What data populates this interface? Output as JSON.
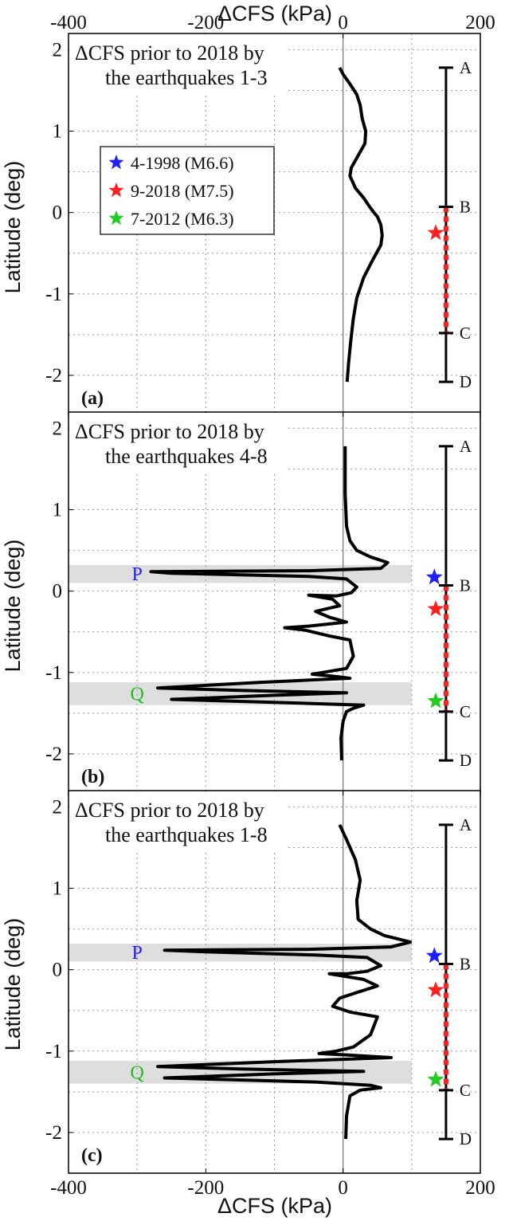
{
  "figure": {
    "top_axis_label": "ΔCFS (kPa)",
    "bottom_axis_label": "ΔCFS (kPa)",
    "y_axis_label": "Latitude (deg)"
  },
  "chart_data": [
    {
      "type": "line",
      "panel_tag": "(a)",
      "title_lines": [
        "ΔCFS prior to 2018 by",
        "the earthquakes 1-3"
      ],
      "xlabel": "ΔCFS (kPa)",
      "ylabel": "Latitude (deg)",
      "xlim": [
        -400,
        200
      ],
      "ylim": [
        -2.5,
        2.2
      ],
      "xticks": [
        -400,
        -200,
        0,
        200
      ],
      "yticks": [
        -2,
        -1,
        0,
        1,
        2
      ],
      "grid": true,
      "legend": {
        "placement": "upper-left",
        "entries": [
          {
            "label": "4-1998 (M6.6)",
            "color": "#1f1fff",
            "marker": "star"
          },
          {
            "label": "9-2018 (M7.5)",
            "color": "#ff1f1f",
            "marker": "star"
          },
          {
            "label": "7-2012 (M6.3)",
            "color": "#1fcc1f",
            "marker": "star"
          }
        ]
      },
      "series": [
        {
          "color": "#000000",
          "points": [
            [
              -5,
              1.78
            ],
            [
              0,
              1.7
            ],
            [
              10,
              1.58
            ],
            [
              20,
              1.45
            ],
            [
              25,
              1.32
            ],
            [
              28,
              1.15
            ],
            [
              33,
              1.0
            ],
            [
              32,
              0.85
            ],
            [
              22,
              0.7
            ],
            [
              12,
              0.55
            ],
            [
              10,
              0.45
            ],
            [
              18,
              0.3
            ],
            [
              30,
              0.18
            ],
            [
              38,
              0.08
            ],
            [
              45,
              0.0
            ],
            [
              50,
              -0.05
            ],
            [
              55,
              -0.15
            ],
            [
              57,
              -0.28
            ],
            [
              55,
              -0.4
            ],
            [
              42,
              -0.6
            ],
            [
              30,
              -0.8
            ],
            [
              20,
              -1.05
            ],
            [
              15,
              -1.3
            ],
            [
              11,
              -1.6
            ],
            [
              8,
              -1.85
            ],
            [
              6,
              -2.08
            ]
          ]
        }
      ],
      "stars": [
        {
          "color": "#ff1f1f",
          "lat": -0.25,
          "x": 135
        }
      ],
      "bands": [],
      "fault": {
        "x": 150,
        "segments": [
          {
            "from": 1.78,
            "to": 0.07,
            "style": "black"
          },
          {
            "from": 0.07,
            "to": -1.48,
            "style": "red-dashed"
          },
          {
            "from": -1.48,
            "to": -2.08,
            "style": "black"
          }
        ],
        "points": [
          {
            "label": "A",
            "lat": 1.78
          },
          {
            "label": "B",
            "lat": 0.07
          },
          {
            "label": "C",
            "lat": -1.48
          },
          {
            "label": "D",
            "lat": -2.08
          }
        ]
      }
    },
    {
      "type": "line",
      "panel_tag": "(b)",
      "title_lines": [
        "ΔCFS prior to 2018 by",
        "the earthquakes 4-8"
      ],
      "xlabel": "ΔCFS (kPa)",
      "ylabel": "Latitude (deg)",
      "xlim": [
        -400,
        200
      ],
      "ylim": [
        -2.5,
        2.2
      ],
      "xticks": [
        -400,
        -200,
        0,
        200
      ],
      "yticks": [
        -2,
        -1,
        0,
        1,
        2
      ],
      "grid": true,
      "series": [
        {
          "color": "#000000",
          "points": [
            [
              3,
              1.78
            ],
            [
              3,
              1.2
            ],
            [
              5,
              0.8
            ],
            [
              10,
              0.62
            ],
            [
              20,
              0.5
            ],
            [
              40,
              0.42
            ],
            [
              65,
              0.35
            ],
            [
              55,
              0.28
            ],
            [
              -50,
              0.25
            ],
            [
              -280,
              0.24
            ],
            [
              -250,
              0.22
            ],
            [
              -50,
              0.18
            ],
            [
              5,
              0.15
            ],
            [
              20,
              0.05
            ],
            [
              12,
              -0.02
            ],
            [
              -10,
              -0.06
            ],
            [
              -50,
              -0.05
            ],
            [
              -15,
              -0.1
            ],
            [
              -5,
              -0.18
            ],
            [
              -25,
              -0.22
            ],
            [
              -40,
              -0.25
            ],
            [
              -20,
              -0.32
            ],
            [
              5,
              -0.38
            ],
            [
              -50,
              -0.43
            ],
            [
              -85,
              -0.45
            ],
            [
              -55,
              -0.48
            ],
            [
              -20,
              -0.55
            ],
            [
              10,
              -0.6
            ],
            [
              15,
              -0.8
            ],
            [
              5,
              -0.95
            ],
            [
              -30,
              -1.0
            ],
            [
              -45,
              -1.02
            ],
            [
              -10,
              -1.05
            ],
            [
              10,
              -1.07
            ],
            [
              -120,
              -1.12
            ],
            [
              -270,
              -1.19
            ],
            [
              -150,
              -1.22
            ],
            [
              5,
              -1.25
            ],
            [
              -100,
              -1.28
            ],
            [
              -250,
              -1.33
            ],
            [
              -50,
              -1.38
            ],
            [
              30,
              -1.4
            ],
            [
              15,
              -1.44
            ],
            [
              5,
              -1.48
            ],
            [
              0,
              -1.6
            ],
            [
              -3,
              -1.8
            ],
            [
              -2,
              -2.08
            ]
          ]
        }
      ],
      "stars": [
        {
          "color": "#1f1fff",
          "lat": 0.17,
          "x": 133
        },
        {
          "color": "#ff1f1f",
          "lat": -0.22,
          "x": 135
        },
        {
          "color": "#1fcc1f",
          "lat": -1.35,
          "x": 135
        }
      ],
      "bands": [
        {
          "label": "P",
          "color": "#2020ee",
          "from": 0.1,
          "to": 0.32
        },
        {
          "label": "Q",
          "color": "#22bb22",
          "from": -1.4,
          "to": -1.12
        }
      ],
      "fault": {
        "x": 150,
        "segments": [
          {
            "from": 1.78,
            "to": 0.07,
            "style": "black"
          },
          {
            "from": 0.07,
            "to": -1.48,
            "style": "red-dashed"
          },
          {
            "from": -1.48,
            "to": -2.08,
            "style": "black"
          }
        ],
        "points": [
          {
            "label": "A",
            "lat": 1.78
          },
          {
            "label": "B",
            "lat": 0.07
          },
          {
            "label": "C",
            "lat": -1.48
          },
          {
            "label": "D",
            "lat": -2.08
          }
        ]
      }
    },
    {
      "type": "line",
      "panel_tag": "(c)",
      "title_lines": [
        "ΔCFS prior to 2018 by",
        "the earthquakes 1-8"
      ],
      "xlabel": "ΔCFS (kPa)",
      "ylabel": "Latitude (deg)",
      "xlim": [
        -400,
        200
      ],
      "ylim": [
        -2.5,
        2.2
      ],
      "xticks": [
        -400,
        -200,
        0,
        200
      ],
      "yticks": [
        -2,
        -1,
        0,
        1,
        2
      ],
      "grid": true,
      "series": [
        {
          "color": "#000000",
          "points": [
            [
              -5,
              1.78
            ],
            [
              5,
              1.6
            ],
            [
              18,
              1.35
            ],
            [
              25,
              1.1
            ],
            [
              20,
              0.85
            ],
            [
              22,
              0.62
            ],
            [
              40,
              0.5
            ],
            [
              60,
              0.42
            ],
            [
              98,
              0.34
            ],
            [
              70,
              0.28
            ],
            [
              -50,
              0.25
            ],
            [
              -260,
              0.24
            ],
            [
              -200,
              0.22
            ],
            [
              -40,
              0.18
            ],
            [
              35,
              0.15
            ],
            [
              55,
              0.05
            ],
            [
              35,
              -0.02
            ],
            [
              5,
              -0.05
            ],
            [
              -20,
              -0.05
            ],
            [
              30,
              -0.12
            ],
            [
              50,
              -0.2
            ],
            [
              20,
              -0.28
            ],
            [
              -5,
              -0.35
            ],
            [
              -15,
              -0.45
            ],
            [
              10,
              -0.52
            ],
            [
              50,
              -0.58
            ],
            [
              40,
              -0.8
            ],
            [
              15,
              -0.95
            ],
            [
              -10,
              -1.0
            ],
            [
              -35,
              -1.03
            ],
            [
              10,
              -1.05
            ],
            [
              70,
              -1.08
            ],
            [
              -100,
              -1.13
            ],
            [
              -270,
              -1.19
            ],
            [
              -150,
              -1.22
            ],
            [
              30,
              -1.25
            ],
            [
              -100,
              -1.28
            ],
            [
              -260,
              -1.33
            ],
            [
              -40,
              -1.38
            ],
            [
              40,
              -1.42
            ],
            [
              55,
              -1.45
            ],
            [
              25,
              -1.48
            ],
            [
              10,
              -1.55
            ],
            [
              5,
              -1.8
            ],
            [
              4,
              -2.08
            ]
          ]
        }
      ],
      "stars": [
        {
          "color": "#1f1fff",
          "lat": 0.17,
          "x": 133
        },
        {
          "color": "#ff1f1f",
          "lat": -0.25,
          "x": 135
        },
        {
          "color": "#1fcc1f",
          "lat": -1.35,
          "x": 135
        }
      ],
      "bands": [
        {
          "label": "P",
          "color": "#2020ee",
          "from": 0.1,
          "to": 0.32
        },
        {
          "label": "Q",
          "color": "#22bb22",
          "from": -1.4,
          "to": -1.12
        }
      ],
      "fault": {
        "x": 150,
        "segments": [
          {
            "from": 1.78,
            "to": 0.07,
            "style": "black"
          },
          {
            "from": 0.07,
            "to": -1.48,
            "style": "red-dashed"
          },
          {
            "from": -1.48,
            "to": -2.08,
            "style": "black"
          }
        ],
        "points": [
          {
            "label": "A",
            "lat": 1.78
          },
          {
            "label": "B",
            "lat": 0.07
          },
          {
            "label": "C",
            "lat": -1.48
          },
          {
            "label": "D",
            "lat": -2.08
          }
        ]
      }
    }
  ]
}
